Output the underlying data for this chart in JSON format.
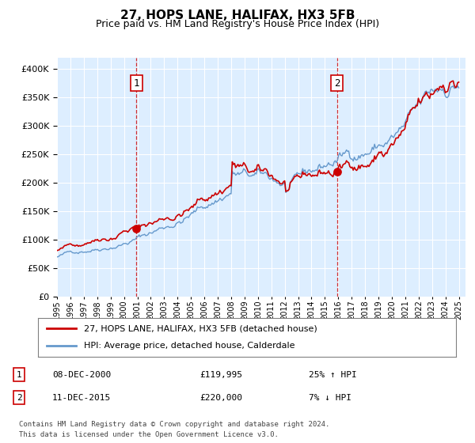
{
  "title": "27, HOPS LANE, HALIFAX, HX3 5FB",
  "subtitle": "Price paid vs. HM Land Registry's House Price Index (HPI)",
  "yticks": [
    0,
    50000,
    100000,
    150000,
    200000,
    250000,
    300000,
    350000,
    400000
  ],
  "ylim": [
    0,
    420000
  ],
  "xlim_start": 1995.0,
  "xlim_end": 2025.5,
  "background_color": "#ddeeff",
  "red_color": "#cc0000",
  "blue_color": "#6699cc",
  "marker1_date": 2000.92,
  "marker1_price": 119995,
  "marker1_label": "1",
  "marker2_date": 2015.92,
  "marker2_price": 220000,
  "marker2_label": "2",
  "legend_line1": "27, HOPS LANE, HALIFAX, HX3 5FB (detached house)",
  "legend_line2": "HPI: Average price, detached house, Calderdale",
  "ann1_date": "08-DEC-2000",
  "ann1_price": "£119,995",
  "ann1_hpi": "25% ↑ HPI",
  "ann2_date": "11-DEC-2015",
  "ann2_price": "£220,000",
  "ann2_hpi": "7% ↓ HPI",
  "footnote1": "Contains HM Land Registry data © Crown copyright and database right 2024.",
  "footnote2": "This data is licensed under the Open Government Licence v3.0.",
  "xtick_years": [
    1995,
    1996,
    1997,
    1998,
    1999,
    2000,
    2001,
    2002,
    2003,
    2004,
    2005,
    2006,
    2007,
    2008,
    2009,
    2010,
    2011,
    2012,
    2013,
    2014,
    2015,
    2016,
    2017,
    2018,
    2019,
    2020,
    2021,
    2022,
    2023,
    2024,
    2025
  ]
}
